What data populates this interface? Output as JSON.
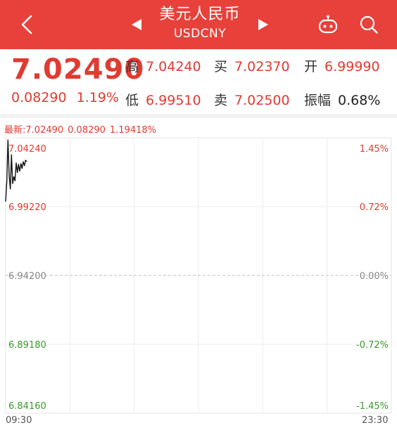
{
  "header": {
    "title": "美元人民币",
    "subtitle": "USDCNY",
    "icons": {
      "back": "chevron-left-icon",
      "prev": "triangle-left-icon",
      "next": "triangle-right-icon",
      "robot": "robot-icon",
      "search": "search-icon"
    },
    "colors": {
      "bar": "#e8413b",
      "foreground": "#ffffff"
    }
  },
  "quote": {
    "price": "7.02490",
    "change": "0.08290",
    "change_pct": "1.19%",
    "high_label": "高",
    "high": "7.04240",
    "low_label": "低",
    "low": "6.99510",
    "buy_label": "买",
    "buy": "7.02370",
    "sell_label": "卖",
    "sell": "7.02500",
    "open_label": "开",
    "open": "6.99990",
    "amplitude_label": "振幅",
    "amplitude": "0.68%",
    "colors": {
      "up": "#e03b32",
      "down": "#3a9a2a"
    }
  },
  "chart_data": {
    "type": "line",
    "latest": {
      "label": "最新:",
      "price": "7.02490",
      "change": "0.08290",
      "change_pct": "1.19418%"
    },
    "y_ticks": [
      "7.04240",
      "6.99220",
      "6.94200",
      "6.89180",
      "6.84160"
    ],
    "y_right_ticks": [
      "1.45%",
      "0.72%",
      "0.00%",
      "-0.72%",
      "-1.45%"
    ],
    "ylim": [
      6.8416,
      7.0424
    ],
    "baseline": 6.942,
    "x_start": "09:30",
    "x_end": "23:30",
    "grid": true,
    "series": [
      {
        "values": [
          6.9958,
          7.011,
          7.0408,
          7.015,
          7.005,
          7.03,
          7.0089,
          7.014,
          7.011,
          7.024,
          7.017,
          7.023,
          7.018,
          7.0235,
          7.02,
          7.0249,
          7.022,
          7.026,
          7.0249
        ]
      }
    ]
  }
}
